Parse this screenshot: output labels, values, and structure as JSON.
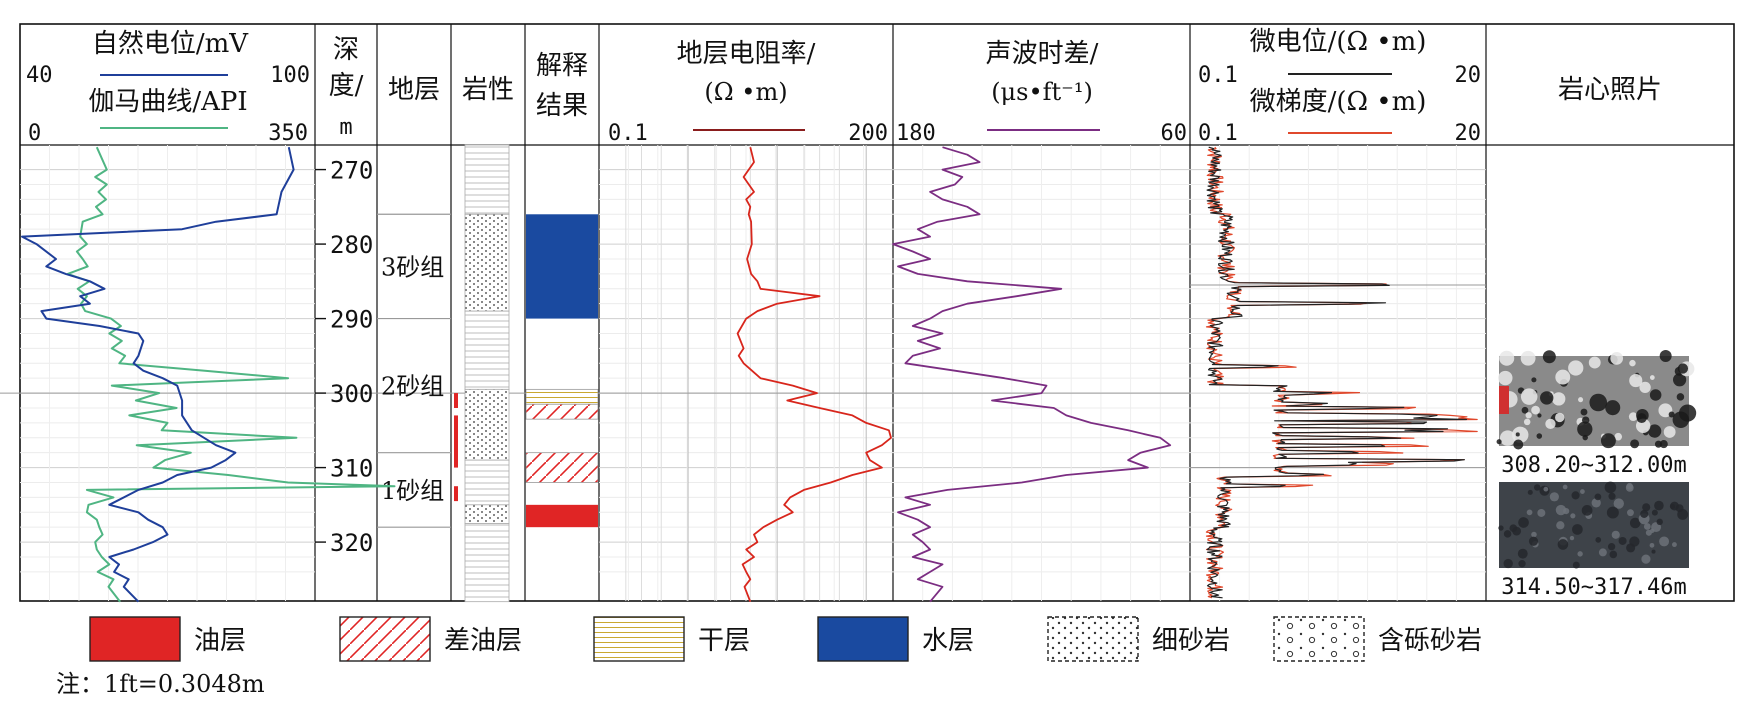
{
  "chart_data": {
    "type": "well-log",
    "depth": {
      "header": [
        "深",
        "度/",
        "m"
      ],
      "ticks": [
        270,
        280,
        290,
        300,
        310,
        320
      ]
    },
    "header": {
      "stratum": "地层",
      "lithology": "岩性",
      "interp": [
        "解释",
        "结果"
      ],
      "core": "岩心照片"
    },
    "tracks": {
      "sp": {
        "title": "自然电位/mV",
        "min_label": "40",
        "max_label": "100",
        "color": "#1f3f9a"
      },
      "gr": {
        "title": "伽马曲线/API",
        "min_label": "0",
        "max_label": "350",
        "color": "#4fb583"
      },
      "res": {
        "title_1": "地层电阻率/",
        "title_2": "(Ω •m)",
        "min_label": "0.1",
        "max_label": "200",
        "color": "#d8261c",
        "scale": "log"
      },
      "ac": {
        "title_1": "声波时差/",
        "title_2": "(μs•ft⁻¹)",
        "min_label": "180",
        "max_label": "60",
        "color": "#7b2d82"
      },
      "micro_inv": {
        "title": "微电位/(Ω •m)",
        "min_label": "0.1",
        "max_label": "20",
        "color": "#222222"
      },
      "micro_nor": {
        "title": "微梯度/(Ω •m)",
        "min_label": "0.1",
        "max_label": "20",
        "color": "#e0482c"
      }
    },
    "formations": [
      {
        "label": "3砂组",
        "top": 276,
        "base": 290
      },
      {
        "label": "2砂组",
        "top": 290,
        "base": 308
      },
      {
        "label": "1砂组",
        "top": 308,
        "base": 318
      }
    ],
    "interpretation": [
      {
        "type": "water",
        "top": 276,
        "base": 290
      },
      {
        "type": "dry",
        "top": 299.5,
        "base": 301.5
      },
      {
        "type": "poor_oil",
        "top": 301.5,
        "base": 303.5
      },
      {
        "type": "poor_oil",
        "top": 308.0,
        "base": 312.0
      },
      {
        "type": "oil",
        "top": 315.0,
        "base": 318.0
      }
    ],
    "core_photos": [
      {
        "label": "308.20~312.00m"
      },
      {
        "label": "314.50~317.46m"
      }
    ],
    "legend": [
      {
        "key": "oil",
        "label": "油层"
      },
      {
        "key": "poor_oil",
        "label": "差油层"
      },
      {
        "key": "dry",
        "label": "干层"
      },
      {
        "key": "water",
        "label": "水层"
      },
      {
        "key": "fine_sand",
        "label": "细砂岩"
      },
      {
        "key": "pebbly_sand",
        "label": "含砾砂岩"
      }
    ],
    "colors": {
      "oil": "#e02525",
      "water": "#1a4aa0",
      "poor_oil": "#e02525",
      "dry": "#c9a830"
    },
    "note": "注：1ft=0.3048m",
    "curves": {
      "sp": [
        [
          267,
          95
        ],
        [
          270,
          96
        ],
        [
          273,
          93.5
        ],
        [
          276,
          92.5
        ],
        [
          277,
          80
        ],
        [
          278,
          73
        ],
        [
          279,
          40
        ],
        [
          280,
          43
        ],
        [
          282,
          47
        ],
        [
          283,
          45
        ],
        [
          284,
          49
        ],
        [
          285,
          54
        ],
        [
          286,
          57
        ],
        [
          287,
          52
        ],
        [
          288,
          54
        ],
        [
          289,
          44
        ],
        [
          290,
          45
        ],
        [
          291,
          56
        ],
        [
          292,
          64
        ],
        [
          293,
          65
        ],
        [
          295,
          64
        ],
        [
          296,
          63
        ],
        [
          297,
          65
        ],
        [
          298,
          69
        ],
        [
          299,
          72
        ],
        [
          301,
          73
        ],
        [
          303,
          73
        ],
        [
          305,
          75
        ],
        [
          307,
          80
        ],
        [
          308,
          84
        ],
        [
          309,
          82
        ],
        [
          310,
          79
        ],
        [
          311,
          72
        ],
        [
          312,
          69
        ],
        [
          313,
          64
        ],
        [
          315,
          58
        ],
        [
          316,
          64
        ],
        [
          317,
          66
        ],
        [
          318,
          69
        ],
        [
          319,
          70
        ],
        [
          320,
          67
        ],
        [
          321,
          63
        ],
        [
          322,
          58
        ],
        [
          323,
          60
        ],
        [
          324,
          59
        ],
        [
          325,
          62
        ],
        [
          326,
          61
        ],
        [
          328,
          64
        ]
      ],
      "gr": [
        [
          267,
          90
        ],
        [
          270,
          102
        ],
        [
          271,
          88
        ],
        [
          272,
          102
        ],
        [
          273,
          92
        ],
        [
          274,
          101
        ],
        [
          275,
          89
        ],
        [
          276,
          97
        ],
        [
          277,
          73
        ],
        [
          279,
          70
        ],
        [
          280,
          78
        ],
        [
          281,
          66
        ],
        [
          282,
          73
        ],
        [
          283,
          79
        ],
        [
          284,
          55
        ],
        [
          285,
          81
        ],
        [
          286,
          67
        ],
        [
          287,
          78
        ],
        [
          288,
          71
        ],
        [
          289,
          76
        ],
        [
          290,
          107
        ],
        [
          291,
          119
        ],
        [
          292,
          105
        ],
        [
          293,
          120
        ],
        [
          294,
          108
        ],
        [
          295,
          124
        ],
        [
          296,
          117
        ],
        [
          297,
          220
        ],
        [
          298,
          320
        ],
        [
          299,
          108
        ],
        [
          300,
          165
        ],
        [
          301,
          137
        ],
        [
          302,
          186
        ],
        [
          303,
          129
        ],
        [
          304,
          175
        ],
        [
          305,
          168
        ],
        [
          306,
          330
        ],
        [
          307,
          138
        ],
        [
          308,
          203
        ],
        [
          309,
          172
        ],
        [
          310,
          158
        ],
        [
          311,
          248
        ],
        [
          312,
          320
        ],
        [
          312.5,
          448
        ],
        [
          313,
          78
        ],
        [
          314,
          110
        ],
        [
          315,
          80
        ],
        [
          316,
          78
        ],
        [
          317,
          90
        ],
        [
          318,
          93
        ],
        [
          319,
          97
        ],
        [
          320,
          88
        ],
        [
          321,
          90
        ],
        [
          322,
          96
        ],
        [
          323,
          105
        ],
        [
          324,
          91
        ],
        [
          325,
          110
        ],
        [
          326,
          104
        ],
        [
          328,
          118
        ]
      ],
      "res": [
        [
          267,
          5
        ],
        [
          269,
          5.5
        ],
        [
          271,
          4.2
        ],
        [
          273,
          5.5
        ],
        [
          274,
          4.5
        ],
        [
          275,
          5
        ],
        [
          276,
          4.8
        ],
        [
          277,
          5.1
        ],
        [
          280,
          5.2
        ],
        [
          282,
          4.6
        ],
        [
          284,
          5.1
        ],
        [
          285,
          6
        ],
        [
          286,
          6.5
        ],
        [
          287,
          30
        ],
        [
          288,
          10
        ],
        [
          289,
          6
        ],
        [
          290,
          4.5
        ],
        [
          292,
          3.6
        ],
        [
          294,
          4.2
        ],
        [
          295,
          3.7
        ],
        [
          296,
          4.2
        ],
        [
          298,
          6.5
        ],
        [
          299,
          15
        ],
        [
          300,
          28
        ],
        [
          301,
          13
        ],
        [
          302,
          30
        ],
        [
          303,
          70
        ],
        [
          304,
          100
        ],
        [
          305,
          180
        ],
        [
          306,
          190
        ],
        [
          307,
          150
        ],
        [
          308,
          100
        ],
        [
          309,
          110
        ],
        [
          310,
          150
        ],
        [
          311,
          70
        ],
        [
          312,
          40
        ],
        [
          313,
          20
        ],
        [
          314,
          14
        ],
        [
          315,
          12
        ],
        [
          316,
          15
        ],
        [
          317,
          10
        ],
        [
          318,
          7
        ],
        [
          319,
          5.5
        ],
        [
          320,
          6
        ],
        [
          321,
          4.5
        ],
        [
          322,
          5.5
        ],
        [
          323,
          4.1
        ],
        [
          324,
          4.5
        ],
        [
          325,
          5
        ],
        [
          326,
          4.3
        ],
        [
          328,
          5
        ]
      ],
      "ac": [
        [
          267,
          160
        ],
        [
          268,
          150
        ],
        [
          269,
          145
        ],
        [
          270,
          160
        ],
        [
          271,
          152
        ],
        [
          272,
          155
        ],
        [
          273,
          165
        ],
        [
          274,
          160
        ],
        [
          275,
          150
        ],
        [
          276,
          145
        ],
        [
          277,
          162
        ],
        [
          278,
          170
        ],
        [
          279,
          165
        ],
        [
          280,
          180
        ],
        [
          281,
          172
        ],
        [
          282,
          165
        ],
        [
          283,
          178
        ],
        [
          284,
          170
        ],
        [
          285,
          150
        ],
        [
          286,
          112
        ],
        [
          287,
          130
        ],
        [
          288,
          150
        ],
        [
          289,
          160
        ],
        [
          290,
          165
        ],
        [
          291,
          172
        ],
        [
          292,
          160
        ],
        [
          293,
          170
        ],
        [
          294,
          161
        ],
        [
          295,
          172
        ],
        [
          296,
          175
        ],
        [
          297,
          155
        ],
        [
          298,
          135
        ],
        [
          299,
          118
        ],
        [
          300,
          120
        ],
        [
          301,
          140
        ],
        [
          302,
          115
        ],
        [
          303,
          110
        ],
        [
          304,
          100
        ],
        [
          305,
          85
        ],
        [
          306,
          72
        ],
        [
          307,
          68
        ],
        [
          308,
          80
        ],
        [
          309,
          85
        ],
        [
          310,
          77
        ],
        [
          311,
          110
        ],
        [
          312,
          128
        ],
        [
          313,
          158
        ],
        [
          314,
          175
        ],
        [
          315,
          165
        ],
        [
          316,
          178
        ],
        [
          317,
          170
        ],
        [
          318,
          165
        ],
        [
          319,
          172
        ],
        [
          320,
          168
        ],
        [
          321,
          165
        ],
        [
          322,
          172
        ],
        [
          323,
          160
        ],
        [
          324,
          165
        ],
        [
          325,
          170
        ],
        [
          326,
          160
        ],
        [
          328,
          165
        ]
      ]
    }
  }
}
